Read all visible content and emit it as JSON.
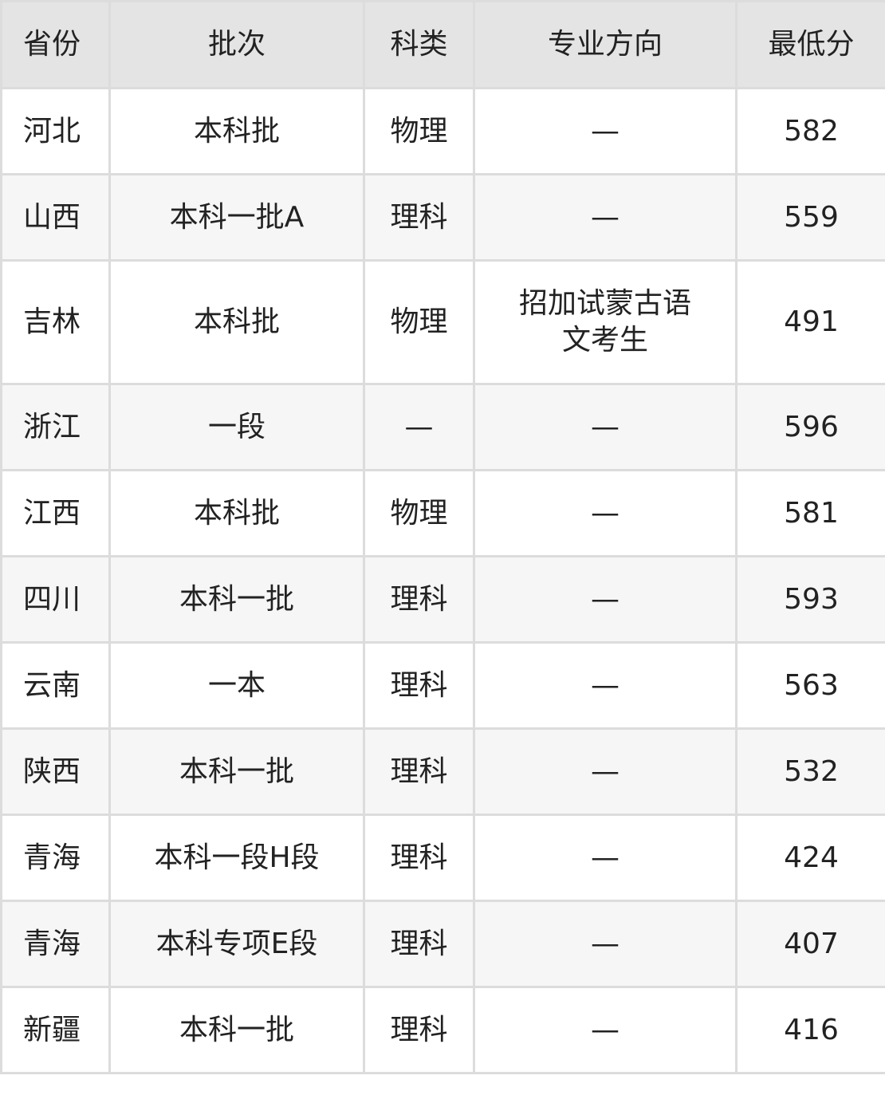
{
  "headers": [
    "省份",
    "批次",
    "科类",
    "专业方向",
    "最低分"
  ],
  "rows": [
    [
      "河北",
      "本科批",
      "物理",
      "—",
      "582"
    ],
    [
      "山西",
      "本科一批A",
      "理科",
      "—",
      "559"
    ],
    [
      "吉林",
      "本科批",
      "物理",
      "招加试蒙古语文考生",
      "491"
    ],
    [
      "浙江",
      "一段",
      "—",
      "—",
      "596"
    ],
    [
      "江西",
      "本科批",
      "物理",
      "—",
      "581"
    ],
    [
      "四川",
      "本科一批",
      "理科",
      "—",
      "593"
    ],
    [
      "云南",
      "一本",
      "理科",
      "—",
      "563"
    ],
    [
      "陕西",
      "本科一批",
      "理科",
      "—",
      "532"
    ],
    [
      "青海",
      "本科一段H段",
      "理科",
      "—",
      "424"
    ],
    [
      "青海",
      "本科专项E段",
      "理科",
      "—",
      "407"
    ],
    [
      "新疆",
      "本科一批",
      "理科",
      "—",
      "416"
    ]
  ]
}
